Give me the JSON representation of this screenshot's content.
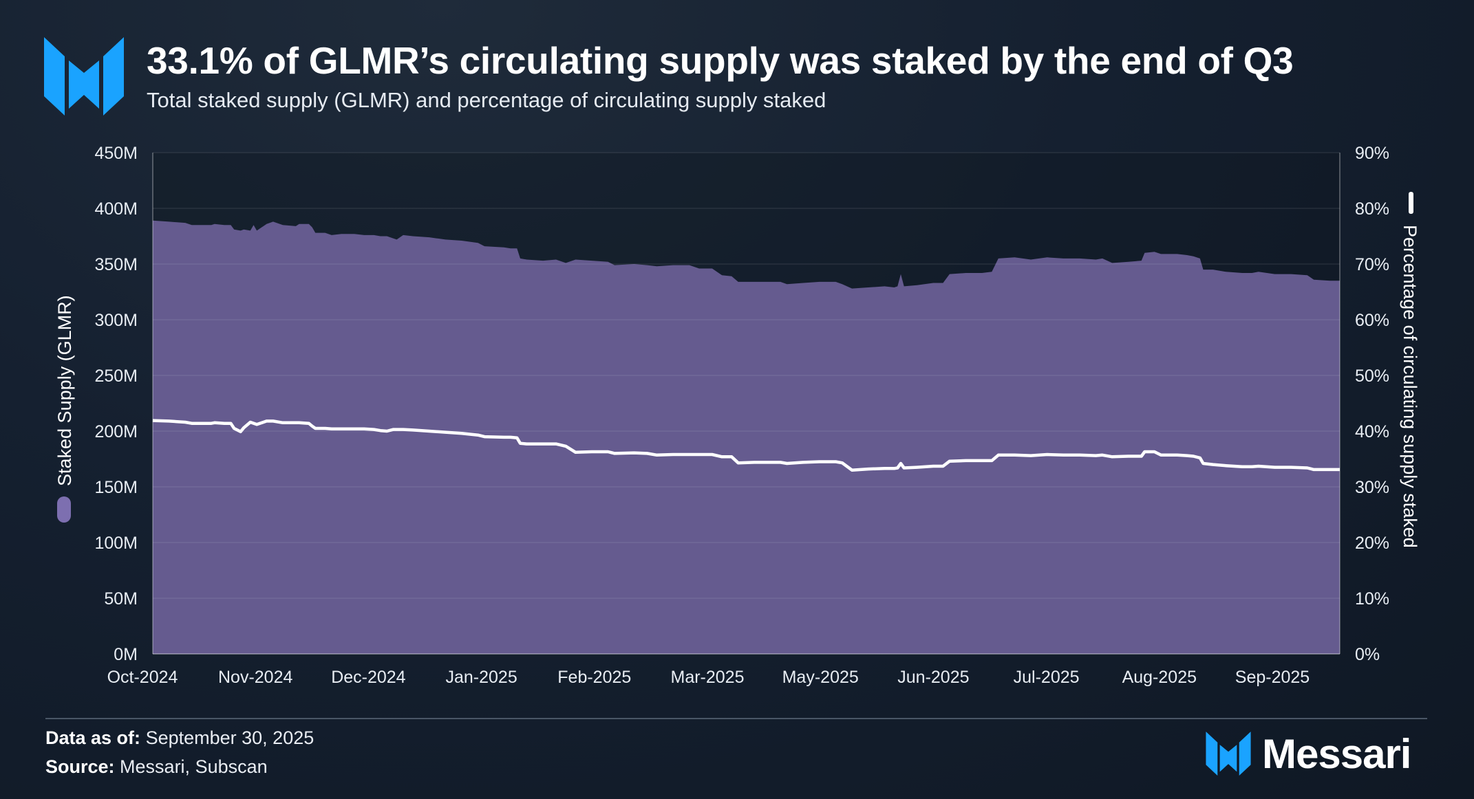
{
  "header": {
    "title": "33.1% of GLMR’s circulating supply was staked by the end of Q3",
    "subtitle": "Total staked supply (GLMR) and percentage of circulating supply staked"
  },
  "footer": {
    "data_as_of_label": "Data as of:",
    "data_as_of_value": "September 30, 2025",
    "source_label": "Source:",
    "source_value": "Messari, Subscan",
    "brand_name": "Messari"
  },
  "colors": {
    "area_fill": "#655b8f",
    "line": "#ffffff",
    "brand_blue": "#1aa3ff",
    "grid": "#3a4656"
  },
  "chart_data": {
    "type": "area",
    "title": "33.1% of GLMR’s circulating supply was staked by the end of Q3",
    "xlabels": [
      "Oct-2024",
      "Nov-2024",
      "Dec-2024",
      "Jan-2025",
      "Feb-2025",
      "Mar-2025",
      "May-2025",
      "Jun-2025",
      "Jul-2025",
      "Aug-2025",
      "Sep-2025"
    ],
    "x_range": [
      0,
      365
    ],
    "y_left": {
      "label": "Staked Supply (GLMR)",
      "min": 0,
      "max": 450,
      "ticks": [
        "0M",
        "50M",
        "100M",
        "150M",
        "200M",
        "250M",
        "300M",
        "350M",
        "400M",
        "450M"
      ]
    },
    "y_right": {
      "label": "Percentage of circulating supply staked",
      "min": 0,
      "max": 90,
      "ticks": [
        "0%",
        "10%",
        "20%",
        "30%",
        "40%",
        "50%",
        "60%",
        "70%",
        "80%",
        "90%"
      ]
    },
    "legend_position": "left and right of axes",
    "series": [
      {
        "name": "Staked Supply (GLMR)",
        "kind": "area",
        "axis": "left",
        "unit": "M GLMR",
        "points": [
          [
            0,
            389
          ],
          [
            5,
            388
          ],
          [
            10,
            387
          ],
          [
            12,
            385
          ],
          [
            18,
            385
          ],
          [
            19,
            386
          ],
          [
            22,
            385
          ],
          [
            24,
            385
          ],
          [
            25,
            381
          ],
          [
            27,
            380
          ],
          [
            28,
            381
          ],
          [
            30,
            380
          ],
          [
            31,
            385
          ],
          [
            32,
            380
          ],
          [
            35,
            386
          ],
          [
            37,
            388
          ],
          [
            40,
            385
          ],
          [
            44,
            384
          ],
          [
            45,
            386
          ],
          [
            48,
            386
          ],
          [
            49,
            383
          ],
          [
            50,
            378
          ],
          [
            53,
            378
          ],
          [
            55,
            376
          ],
          [
            58,
            377
          ],
          [
            62,
            377
          ],
          [
            65,
            376
          ],
          [
            68,
            376
          ],
          [
            70,
            375
          ],
          [
            72,
            375
          ],
          [
            74,
            373
          ],
          [
            75,
            372
          ],
          [
            77,
            376
          ],
          [
            80,
            375
          ],
          [
            85,
            374
          ],
          [
            90,
            372
          ],
          [
            95,
            371
          ],
          [
            100,
            369
          ],
          [
            102,
            366
          ],
          [
            108,
            365
          ],
          [
            110,
            364
          ],
          [
            112,
            364
          ],
          [
            113,
            355
          ],
          [
            115,
            354
          ],
          [
            120,
            353
          ],
          [
            124,
            354
          ],
          [
            127,
            351
          ],
          [
            130,
            354
          ],
          [
            135,
            353
          ],
          [
            140,
            352
          ],
          [
            142,
            349
          ],
          [
            148,
            350
          ],
          [
            152,
            349
          ],
          [
            155,
            348
          ],
          [
            160,
            349
          ],
          [
            165,
            349
          ],
          [
            168,
            346
          ],
          [
            172,
            346
          ],
          [
            175,
            340
          ],
          [
            178,
            339
          ],
          [
            180,
            334
          ],
          [
            185,
            334
          ],
          [
            190,
            334
          ],
          [
            193,
            334
          ],
          [
            195,
            332
          ],
          [
            200,
            333
          ],
          [
            205,
            334
          ],
          [
            210,
            334
          ],
          [
            212,
            332
          ],
          [
            215,
            328
          ],
          [
            220,
            329
          ],
          [
            225,
            330
          ],
          [
            228,
            329
          ],
          [
            229,
            330
          ],
          [
            230,
            341
          ],
          [
            231,
            330
          ],
          [
            235,
            331
          ],
          [
            240,
            333
          ],
          [
            243,
            333
          ],
          [
            245,
            341
          ],
          [
            250,
            342
          ],
          [
            255,
            342
          ],
          [
            258,
            343
          ],
          [
            260,
            355
          ],
          [
            265,
            356
          ],
          [
            270,
            354
          ],
          [
            275,
            356
          ],
          [
            280,
            355
          ],
          [
            285,
            355
          ],
          [
            290,
            354
          ],
          [
            292,
            355
          ],
          [
            295,
            351
          ],
          [
            300,
            352
          ],
          [
            304,
            353
          ],
          [
            305,
            360
          ],
          [
            308,
            361
          ],
          [
            310,
            359
          ],
          [
            315,
            359
          ],
          [
            318,
            358
          ],
          [
            320,
            357
          ],
          [
            322,
            355
          ],
          [
            323,
            345
          ],
          [
            326,
            345
          ],
          [
            330,
            343
          ],
          [
            335,
            342
          ],
          [
            338,
            342
          ],
          [
            340,
            343
          ],
          [
            345,
            341
          ],
          [
            350,
            341
          ],
          [
            355,
            340
          ],
          [
            357,
            336
          ],
          [
            362,
            335
          ],
          [
            365,
            335
          ]
        ]
      },
      {
        "name": "Percentage of circulating supply staked",
        "kind": "line",
        "axis": "right",
        "unit": "%",
        "points": [
          [
            0,
            41.9
          ],
          [
            5,
            41.8
          ],
          [
            10,
            41.6
          ],
          [
            12,
            41.4
          ],
          [
            18,
            41.4
          ],
          [
            19,
            41.5
          ],
          [
            22,
            41.4
          ],
          [
            24,
            41.4
          ],
          [
            25,
            40.5
          ],
          [
            27,
            39.9
          ],
          [
            28,
            40.6
          ],
          [
            30,
            41.6
          ],
          [
            32,
            41.2
          ],
          [
            35,
            41.8
          ],
          [
            37,
            41.8
          ],
          [
            40,
            41.5
          ],
          [
            44,
            41.5
          ],
          [
            45,
            41.5
          ],
          [
            48,
            41.4
          ],
          [
            49,
            40.9
          ],
          [
            50,
            40.5
          ],
          [
            53,
            40.5
          ],
          [
            55,
            40.4
          ],
          [
            58,
            40.4
          ],
          [
            62,
            40.4
          ],
          [
            65,
            40.4
          ],
          [
            68,
            40.3
          ],
          [
            70,
            40.1
          ],
          [
            72,
            40.0
          ],
          [
            74,
            40.3
          ],
          [
            77,
            40.3
          ],
          [
            80,
            40.2
          ],
          [
            85,
            40.0
          ],
          [
            90,
            39.8
          ],
          [
            95,
            39.6
          ],
          [
            100,
            39.3
          ],
          [
            102,
            39.0
          ],
          [
            108,
            38.9
          ],
          [
            110,
            38.9
          ],
          [
            112,
            38.8
          ],
          [
            113,
            37.8
          ],
          [
            115,
            37.7
          ],
          [
            120,
            37.7
          ],
          [
            124,
            37.7
          ],
          [
            127,
            37.3
          ],
          [
            130,
            36.2
          ],
          [
            135,
            36.3
          ],
          [
            140,
            36.3
          ],
          [
            142,
            36.0
          ],
          [
            148,
            36.1
          ],
          [
            152,
            36.0
          ],
          [
            155,
            35.7
          ],
          [
            160,
            35.8
          ],
          [
            165,
            35.8
          ],
          [
            168,
            35.8
          ],
          [
            172,
            35.8
          ],
          [
            175,
            35.4
          ],
          [
            178,
            35.4
          ],
          [
            180,
            34.3
          ],
          [
            185,
            34.4
          ],
          [
            190,
            34.4
          ],
          [
            193,
            34.4
          ],
          [
            195,
            34.2
          ],
          [
            200,
            34.4
          ],
          [
            205,
            34.5
          ],
          [
            210,
            34.5
          ],
          [
            212,
            34.3
          ],
          [
            215,
            33.0
          ],
          [
            220,
            33.2
          ],
          [
            225,
            33.3
          ],
          [
            228,
            33.3
          ],
          [
            229,
            33.4
          ],
          [
            230,
            34.2
          ],
          [
            231,
            33.4
          ],
          [
            235,
            33.5
          ],
          [
            240,
            33.7
          ],
          [
            243,
            33.7
          ],
          [
            245,
            34.6
          ],
          [
            250,
            34.7
          ],
          [
            255,
            34.7
          ],
          [
            258,
            34.7
          ],
          [
            260,
            35.7
          ],
          [
            265,
            35.7
          ],
          [
            270,
            35.6
          ],
          [
            275,
            35.8
          ],
          [
            280,
            35.7
          ],
          [
            285,
            35.7
          ],
          [
            290,
            35.6
          ],
          [
            292,
            35.7
          ],
          [
            295,
            35.4
          ],
          [
            300,
            35.5
          ],
          [
            304,
            35.5
          ],
          [
            305,
            36.3
          ],
          [
            308,
            36.3
          ],
          [
            310,
            35.7
          ],
          [
            315,
            35.7
          ],
          [
            318,
            35.6
          ],
          [
            320,
            35.5
          ],
          [
            322,
            35.2
          ],
          [
            323,
            34.2
          ],
          [
            326,
            34.0
          ],
          [
            330,
            33.8
          ],
          [
            335,
            33.6
          ],
          [
            338,
            33.6
          ],
          [
            340,
            33.7
          ],
          [
            345,
            33.5
          ],
          [
            350,
            33.5
          ],
          [
            355,
            33.4
          ],
          [
            357,
            33.1
          ],
          [
            362,
            33.1
          ],
          [
            365,
            33.1
          ]
        ]
      }
    ]
  }
}
